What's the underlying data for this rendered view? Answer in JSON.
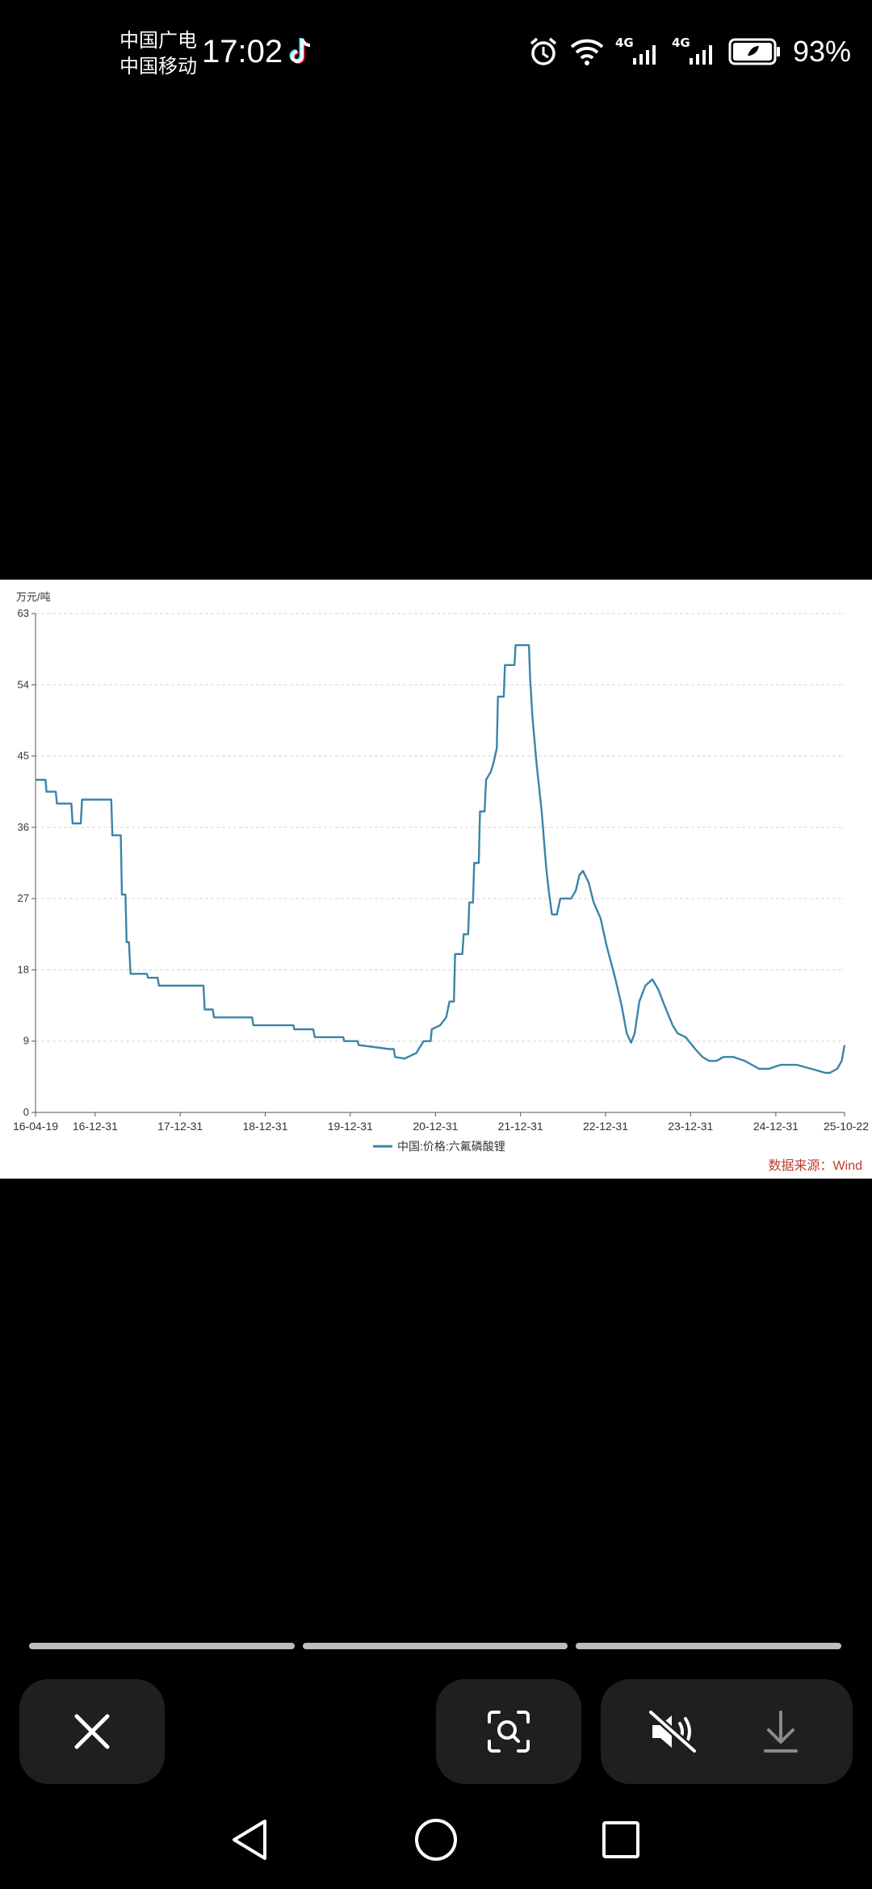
{
  "status_bar": {
    "carrier_1": "中国广电",
    "carrier_2": "中国移动",
    "time": "17:02",
    "network_1": "4G",
    "network_2": "4G",
    "battery_percent": "93%",
    "icons": [
      "tiktok-icon",
      "alarm-icon",
      "wifi-icon",
      "signal-icon",
      "battery-icon"
    ]
  },
  "chart_data": {
    "type": "line",
    "ylabel": "万元/吨",
    "ylim": [
      0,
      63
    ],
    "yticks": [
      0,
      9,
      18,
      27,
      36,
      45,
      54,
      63
    ],
    "xlim": [
      "2016-04-19",
      "2025-10-22"
    ],
    "xtick_labels": [
      "16-04-19",
      "16-12-31",
      "17-12-31",
      "18-12-31",
      "19-12-31",
      "20-12-31",
      "21-12-31",
      "22-12-31",
      "23-12-31",
      "24-12-31",
      "25-10-22"
    ],
    "grid": true,
    "legend_position": "bottom-center",
    "series": [
      {
        "name": "中国:价格:六氟磷酸锂",
        "color": "#3a84a7",
        "points": [
          [
            "2016-04-19",
            42
          ],
          [
            "2016-06-01",
            42
          ],
          [
            "2016-06-05",
            40.5
          ],
          [
            "2016-07-15",
            40.5
          ],
          [
            "2016-07-20",
            39
          ],
          [
            "2016-09-20",
            39
          ],
          [
            "2016-09-25",
            36.5
          ],
          [
            "2016-10-30",
            36.5
          ],
          [
            "2016-11-05",
            39.5
          ],
          [
            "2017-03-10",
            39.5
          ],
          [
            "2017-03-15",
            35
          ],
          [
            "2017-04-20",
            35
          ],
          [
            "2017-04-25",
            27.5
          ],
          [
            "2017-05-10",
            27.5
          ],
          [
            "2017-05-15",
            21.5
          ],
          [
            "2017-05-25",
            21.5
          ],
          [
            "2017-06-01",
            17.5
          ],
          [
            "2017-08-10",
            17.5
          ],
          [
            "2017-08-15",
            17
          ],
          [
            "2017-09-25",
            17
          ],
          [
            "2017-10-01",
            16
          ],
          [
            "2018-04-10",
            16
          ],
          [
            "2018-04-15",
            13
          ],
          [
            "2018-05-20",
            13
          ],
          [
            "2018-05-25",
            12
          ],
          [
            "2018-11-05",
            12
          ],
          [
            "2018-11-10",
            11
          ],
          [
            "2019-05-01",
            11
          ],
          [
            "2019-05-05",
            10.5
          ],
          [
            "2019-07-25",
            10.5
          ],
          [
            "2019-08-01",
            9.5
          ],
          [
            "2019-12-01",
            9.5
          ],
          [
            "2019-12-05",
            9
          ],
          [
            "2020-02-01",
            9
          ],
          [
            "2020-02-05",
            8.5
          ],
          [
            "2020-06-15",
            8
          ],
          [
            "2020-07-05",
            8
          ],
          [
            "2020-07-10",
            7
          ],
          [
            "2020-08-20",
            6.8
          ],
          [
            "2020-10-10",
            7.5
          ],
          [
            "2020-10-20",
            8
          ],
          [
            "2020-11-10",
            9
          ],
          [
            "2020-12-10",
            9
          ],
          [
            "2020-12-15",
            10.5
          ],
          [
            "2021-01-20",
            11
          ],
          [
            "2021-02-15",
            12
          ],
          [
            "2021-03-01",
            14
          ],
          [
            "2021-03-20",
            14
          ],
          [
            "2021-03-25",
            20
          ],
          [
            "2021-04-25",
            20
          ],
          [
            "2021-05-01",
            22.5
          ],
          [
            "2021-05-20",
            22.5
          ],
          [
            "2021-05-25",
            26.5
          ],
          [
            "2021-06-10",
            26.5
          ],
          [
            "2021-06-15",
            31.5
          ],
          [
            "2021-07-05",
            31.5
          ],
          [
            "2021-07-10",
            38
          ],
          [
            "2021-07-30",
            38
          ],
          [
            "2021-08-05",
            42
          ],
          [
            "2021-08-25",
            43
          ],
          [
            "2021-09-05",
            44
          ],
          [
            "2021-09-20",
            46
          ],
          [
            "2021-09-25",
            52.5
          ],
          [
            "2021-10-20",
            52.5
          ],
          [
            "2021-10-25",
            56.5
          ],
          [
            "2021-12-05",
            56.5
          ],
          [
            "2021-12-10",
            59
          ],
          [
            "2022-02-05",
            59
          ],
          [
            "2022-02-10",
            55
          ],
          [
            "2022-02-20",
            50
          ],
          [
            "2022-03-10",
            44
          ],
          [
            "2022-04-01",
            38
          ],
          [
            "2022-04-20",
            31
          ],
          [
            "2022-05-01",
            28
          ],
          [
            "2022-05-15",
            25
          ],
          [
            "2022-06-05",
            25
          ],
          [
            "2022-06-20",
            27
          ],
          [
            "2022-08-05",
            27
          ],
          [
            "2022-08-25",
            28
          ],
          [
            "2022-09-10",
            30
          ],
          [
            "2022-09-25",
            30.5
          ],
          [
            "2022-10-20",
            29
          ],
          [
            "2022-11-10",
            26.5
          ],
          [
            "2022-12-10",
            24.5
          ],
          [
            "2023-01-05",
            21
          ],
          [
            "2023-02-10",
            17
          ],
          [
            "2023-03-10",
            13.5
          ],
          [
            "2023-04-01",
            10
          ],
          [
            "2023-04-20",
            8.8
          ],
          [
            "2023-05-05",
            10
          ],
          [
            "2023-05-25",
            14
          ],
          [
            "2023-06-20",
            16
          ],
          [
            "2023-07-20",
            16.8
          ],
          [
            "2023-08-15",
            15.5
          ],
          [
            "2023-09-10",
            13.5
          ],
          [
            "2023-10-15",
            11
          ],
          [
            "2023-11-05",
            10
          ],
          [
            "2023-12-10",
            9.5
          ],
          [
            "2024-01-20",
            8
          ],
          [
            "2024-02-20",
            7
          ],
          [
            "2024-03-20",
            6.5
          ],
          [
            "2024-04-20",
            6.5
          ],
          [
            "2024-05-20",
            7
          ],
          [
            "2024-07-01",
            7
          ],
          [
            "2024-08-20",
            6.5
          ],
          [
            "2024-10-20",
            5.5
          ],
          [
            "2024-12-01",
            5.5
          ],
          [
            "2025-01-20",
            6
          ],
          [
            "2025-04-01",
            6
          ],
          [
            "2025-06-01",
            5.5
          ],
          [
            "2025-08-01",
            5
          ],
          [
            "2025-08-20",
            5
          ],
          [
            "2025-09-20",
            5.5
          ],
          [
            "2025-10-10",
            6.5
          ],
          [
            "2025-10-22",
            8.5
          ]
        ]
      }
    ],
    "source_note": "数据来源：Wind"
  },
  "bottom_bar": {
    "buttons": [
      "close-icon",
      "scan-icon",
      "mute-icon",
      "download-icon"
    ]
  },
  "nav_bar": {
    "buttons": [
      "back-icon",
      "home-icon",
      "recents-icon"
    ]
  }
}
